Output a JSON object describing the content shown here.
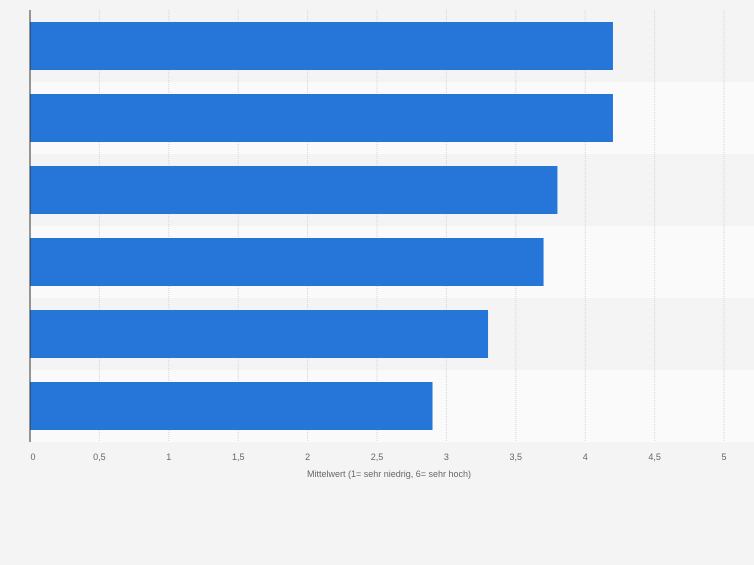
{
  "chart_data": {
    "type": "bar",
    "orientation": "horizontal",
    "categories": [
      "",
      "",
      "",
      "",
      "",
      ""
    ],
    "values": [
      4.2,
      4.2,
      3.8,
      3.7,
      3.3,
      2.9
    ],
    "xlabel": "Mittelwert (1= sehr niedrig, 6= sehr hoch)",
    "ylabel": "",
    "xlim": [
      0,
      5
    ],
    "tick_values": [
      0,
      0.5,
      1,
      1.5,
      2,
      2.5,
      3,
      3.5,
      4,
      4.5,
      5
    ],
    "tick_labels": [
      "0",
      "0,5",
      "1",
      "1,5",
      "2",
      "2,5",
      "3",
      "3,5",
      "4",
      "4,5",
      "5"
    ],
    "grid": true,
    "bar_color": "#2675d9",
    "band_colors": [
      "#f4f4f4",
      "#fafafa"
    ],
    "gridline_color": "#d6d6d6",
    "axis_color": "#333333",
    "tick_label_color": "#666666"
  }
}
